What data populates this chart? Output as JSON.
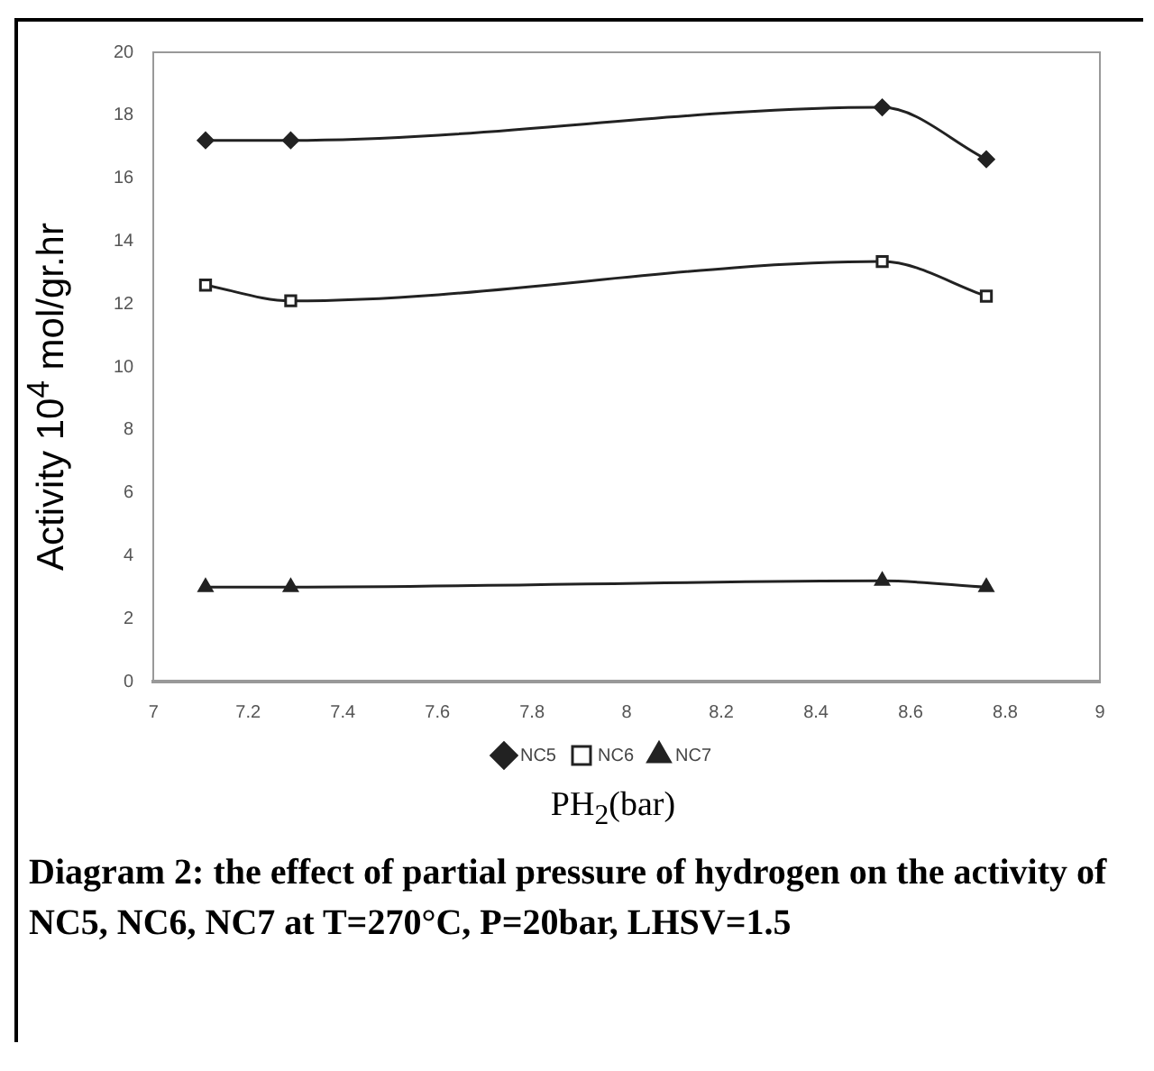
{
  "chart_data": {
    "type": "line",
    "xlabel": "PH$_{2}$(bar)",
    "ylabel": "Activity  10$^{4}$ mol/gr.hr",
    "x": [
      7.11,
      7.29,
      8.54,
      8.76
    ],
    "series": [
      {
        "name": "NC5",
        "color": "#222222",
        "values": [
          17.2,
          17.2,
          18.25,
          16.6
        ],
        "marker": "diamond"
      },
      {
        "name": "NC6",
        "color": "#222222",
        "values": [
          12.6,
          12.1,
          13.35,
          12.25
        ],
        "marker": "square"
      },
      {
        "name": "NC7",
        "color": "#222222",
        "values": [
          3.0,
          3.0,
          3.2,
          3.0
        ],
        "marker": "triangle"
      }
    ],
    "xlim": [
      7,
      9
    ],
    "xticks": [
      7,
      7.2,
      7.4,
      7.6,
      7.8,
      8,
      8.2,
      8.4,
      8.6,
      8.8,
      9
    ],
    "ylim": [
      0,
      20
    ],
    "yticks": [
      0,
      2,
      4,
      6,
      8,
      10,
      12,
      14,
      16,
      18,
      20
    ],
    "grid": false,
    "legend": "bottom",
    "line_style": "solid",
    "annotations": [
      "Diagram 2: the effect of partial pressure of hydrogen on the activity of NC5, NC6, NC7 at T=270°C, P=20bar,  LHSV=1.5"
    ]
  }
}
